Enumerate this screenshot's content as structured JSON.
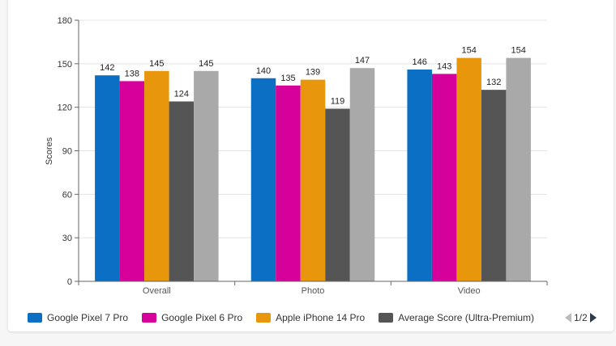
{
  "chart_data": {
    "type": "bar",
    "ylabel": "Scores",
    "xlabel": "",
    "ylim": [
      0,
      180
    ],
    "yticks": [
      0,
      30,
      60,
      90,
      120,
      150,
      180
    ],
    "grid": true,
    "legend_position": "bottom",
    "categories": [
      "Overall",
      "Photo",
      "Video"
    ],
    "series": [
      {
        "name": "Google Pixel 7 Pro",
        "color": "#0b6fc4",
        "values": [
          142,
          140,
          146
        ]
      },
      {
        "name": "Google Pixel 6 Pro",
        "color": "#d6009b",
        "values": [
          138,
          135,
          143
        ]
      },
      {
        "name": "Apple iPhone 14 Pro",
        "color": "#e8960c",
        "values": [
          145,
          139,
          154
        ]
      },
      {
        "name": "Average Score (Ultra-Premium)",
        "color": "#555555",
        "values": [
          124,
          119,
          132
        ]
      },
      {
        "name": "",
        "color": "#a9a9a9",
        "values": [
          145,
          147,
          154
        ]
      }
    ]
  },
  "legend": {
    "pager_text": "1/2"
  }
}
